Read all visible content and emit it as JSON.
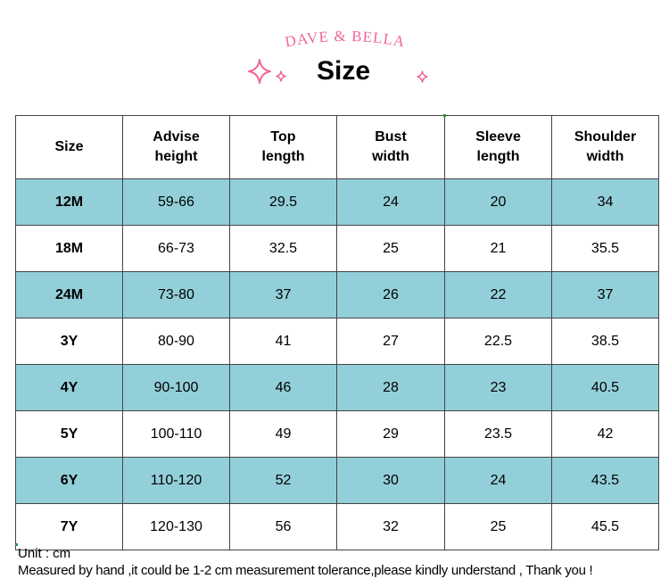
{
  "brand": {
    "text": "DAVE & BELLA",
    "color": "#f0669c"
  },
  "title": "Size",
  "icons": [
    "sparkle-large",
    "sparkle-small",
    "sparkle-right"
  ],
  "colors": {
    "row_tint": "#92cfd9",
    "border": "#444444"
  },
  "table": {
    "headers": [
      {
        "line1": "Size",
        "line2": ""
      },
      {
        "line1": "Advise",
        "line2": "height"
      },
      {
        "line1": "Top",
        "line2": "length"
      },
      {
        "line1": "Bust",
        "line2": "width"
      },
      {
        "line1": "Sleeve",
        "line2": "length"
      },
      {
        "line1": "Shoulder",
        "line2": "width"
      }
    ],
    "rows": [
      {
        "size": "12M",
        "advise_height": "59-66",
        "top_length": "29.5",
        "bust_width": "24",
        "sleeve_length": "20",
        "shoulder_width": "34"
      },
      {
        "size": "18M",
        "advise_height": "66-73",
        "top_length": "32.5",
        "bust_width": "25",
        "sleeve_length": "21",
        "shoulder_width": "35.5"
      },
      {
        "size": "24M",
        "advise_height": "73-80",
        "top_length": "37",
        "bust_width": "26",
        "sleeve_length": "22",
        "shoulder_width": "37"
      },
      {
        "size": "3Y",
        "advise_height": "80-90",
        "top_length": "41",
        "bust_width": "27",
        "sleeve_length": "22.5",
        "shoulder_width": "38.5"
      },
      {
        "size": "4Y",
        "advise_height": "90-100",
        "top_length": "46",
        "bust_width": "28",
        "sleeve_length": "23",
        "shoulder_width": "40.5"
      },
      {
        "size": "5Y",
        "advise_height": "100-110",
        "top_length": "49",
        "bust_width": "29",
        "sleeve_length": "23.5",
        "shoulder_width": "42"
      },
      {
        "size": "6Y",
        "advise_height": "110-120",
        "top_length": "52",
        "bust_width": "30",
        "sleeve_length": "24",
        "shoulder_width": "43.5"
      },
      {
        "size": "7Y",
        "advise_height": "120-130",
        "top_length": "56",
        "bust_width": "32",
        "sleeve_length": "25",
        "shoulder_width": "45.5"
      }
    ]
  },
  "notes": {
    "unit": "Unit : cm",
    "measure": "Measured by hand ,it could be 1-2 cm measurement tolerance,please kindly understand , Thank you !"
  }
}
